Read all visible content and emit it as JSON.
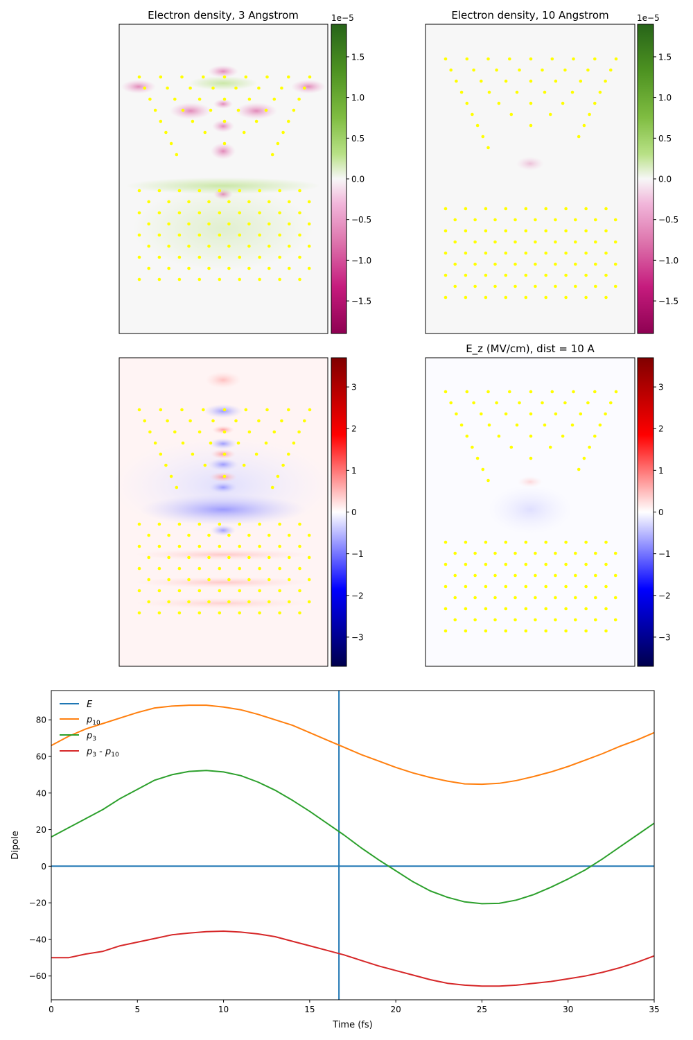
{
  "colors": {
    "atom": "#ffff00",
    "E": "#1f77b4",
    "p10": "#ff7f0e",
    "p3": "#2ca02c",
    "diff": "#d62728"
  },
  "panels": {
    "density3": {
      "title": "Electron density, 3 Angstrom",
      "cmap": "PiYG"
    },
    "density10": {
      "title": "Electron density, 10 Angstrom",
      "cmap": "PiYG"
    },
    "ez3": {
      "title": "",
      "cmap": "seismic"
    },
    "ez10": {
      "title": "E_z (MV/cm), dist = 10 A",
      "cmap": "seismic"
    }
  },
  "colorbars": {
    "density": {
      "offset_label": "1e−5",
      "ticks": [
        "1.5",
        "1.0",
        "0.5",
        "0.0",
        "−0.5",
        "−1.0",
        "−1.5"
      ],
      "range": [
        -1.9,
        1.9
      ]
    },
    "field": {
      "ticks": [
        "3",
        "2",
        "1",
        "0",
        "−1",
        "−2",
        "−3"
      ],
      "range": [
        -3.7,
        3.7
      ]
    }
  },
  "chart_data": {
    "type": "line",
    "xlabel": "Time (fs)",
    "ylabel": "Dipole",
    "xlim": [
      0,
      35
    ],
    "ylim": [
      -73,
      96
    ],
    "xticks": [
      0,
      5,
      10,
      15,
      20,
      25,
      30,
      35
    ],
    "yticks": [
      -60,
      -40,
      -20,
      0,
      20,
      40,
      60,
      80
    ],
    "vline_x": 16.7,
    "legend": {
      "location": "upper-left",
      "entries": [
        "E",
        "p10",
        "p3",
        "p3 - p10"
      ]
    },
    "series": [
      {
        "name": "E",
        "x": [
          0,
          35
        ],
        "values": [
          0,
          0
        ]
      },
      {
        "name": "p10",
        "x": [
          0,
          1,
          2,
          3,
          4,
          5,
          6,
          7,
          8,
          9,
          10,
          11,
          12,
          13,
          14,
          15,
          16,
          17,
          18,
          19,
          20,
          21,
          22,
          23,
          24,
          25,
          26,
          27,
          28,
          29,
          30,
          31,
          32,
          33,
          34,
          35
        ],
        "values": [
          66,
          71,
          75,
          78,
          81,
          84,
          86.5,
          87.5,
          88,
          88,
          87,
          85.5,
          83,
          80,
          77,
          73,
          69,
          65,
          61,
          57.5,
          54,
          51,
          48.5,
          46.5,
          45,
          44.8,
          45.3,
          46.8,
          49,
          51.5,
          54.5,
          58,
          61.5,
          65.5,
          69,
          73
        ]
      },
      {
        "name": "p3",
        "x": [
          0,
          1,
          2,
          3,
          4,
          5,
          6,
          7,
          8,
          9,
          10,
          11,
          12,
          13,
          14,
          15,
          16,
          17,
          18,
          19,
          20,
          21,
          22,
          23,
          24,
          25,
          26,
          27,
          28,
          29,
          30,
          31,
          32,
          33,
          34,
          35
        ],
        "values": [
          16,
          21,
          26,
          31,
          37,
          42,
          47,
          50,
          51.8,
          52.3,
          51.5,
          49.5,
          46,
          41.5,
          36,
          30,
          23.5,
          17,
          10,
          3.5,
          -2.5,
          -8.5,
          -13.5,
          -17,
          -19.5,
          -20.5,
          -20.3,
          -18.5,
          -15.5,
          -11.5,
          -7,
          -2,
          4,
          10.5,
          17,
          23.5
        ]
      },
      {
        "name": "p3 - p10",
        "x": [
          0,
          1,
          2,
          3,
          4,
          5,
          6,
          7,
          8,
          9,
          10,
          11,
          12,
          13,
          14,
          15,
          16,
          17,
          18,
          19,
          20,
          21,
          22,
          23,
          24,
          25,
          26,
          27,
          28,
          29,
          30,
          31,
          32,
          33,
          34,
          35
        ],
        "values": [
          -50,
          -50,
          -48,
          -46.5,
          -43.5,
          -41.5,
          -39.5,
          -37.5,
          -36.5,
          -35.8,
          -35.5,
          -36,
          -37,
          -38.5,
          -41,
          -43.5,
          -46,
          -48.5,
          -51.5,
          -54.5,
          -57,
          -59.5,
          -62,
          -64,
          -65,
          -65.5,
          -65.5,
          -65,
          -64,
          -63,
          -61.5,
          -60,
          -58,
          -55.5,
          -52.5,
          -49
        ]
      }
    ]
  }
}
